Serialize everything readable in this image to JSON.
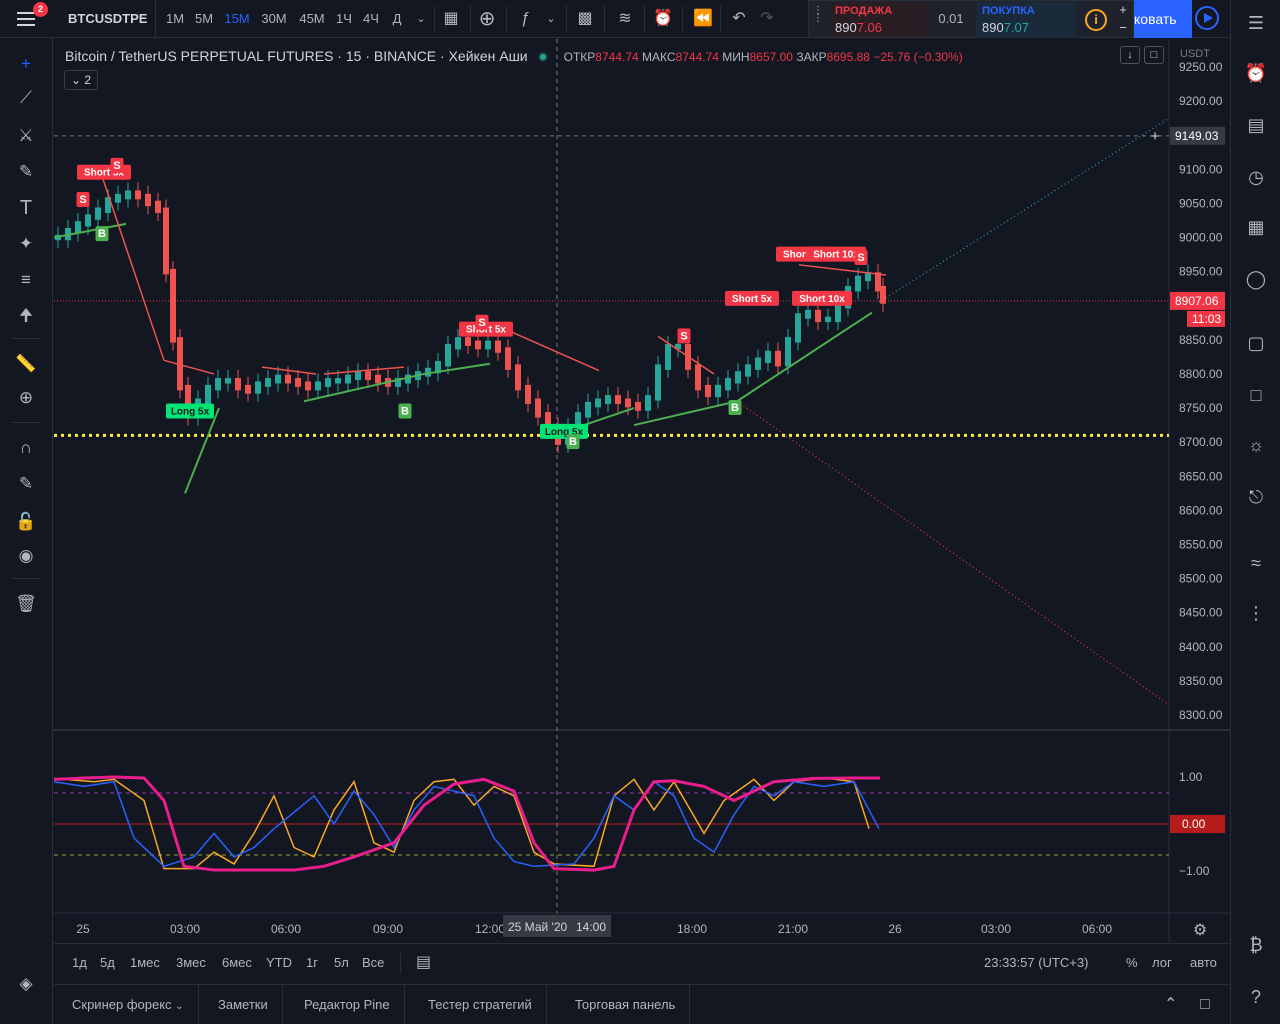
{
  "topbar": {
    "symbol": "BTCUSDTPE",
    "notification_count": "2",
    "timeframes": [
      "1M",
      "5M",
      "15M",
      "30M",
      "45M",
      "1Ч",
      "4Ч",
      "Д"
    ],
    "active_timeframe": "15M",
    "icons": [
      "candles-icon",
      "add-indicator-icon",
      "fx-icon",
      "bar-chart-icon",
      "template-icon",
      "alert-clock-icon",
      "replay-icon",
      "undo-icon",
      "redo-icon"
    ]
  },
  "trade_panel": {
    "sell_label": "ПРОДАЖА",
    "sell_price_prefix": "890",
    "sell_price_hi": "7.06",
    "spread": "0.01",
    "buy_label": "ПОКУПКА",
    "buy_price_prefix": "890",
    "buy_price_hi": "7.07",
    "trade_button": "ковать",
    "plus": "+",
    "minus": "−"
  },
  "legend": {
    "title": "Bitcoin / TetherUS PERPETUAL FUTURES",
    "interval": "15",
    "exchange": "BINANCE",
    "chart_style": "Хейкен Аши",
    "open_label": "ОТКР",
    "open": "8744.74",
    "high_label": "МАКС",
    "high": "8744.74",
    "low_label": "МИН",
    "low": "8657.00",
    "close_label": "ЗАКР",
    "close": "8695.88",
    "change": "−25.76 (−0.30%)",
    "indicators_count": "2"
  },
  "price_axis": {
    "currency": "USDT",
    "crosshair_price": "9149.03",
    "last_price": "8907.06",
    "countdown": "11:03"
  },
  "oscillator_axis": {
    "current_value": "0.00"
  },
  "time_axis": {
    "crosshair_label": "25 Май '20",
    "crosshair_time": "14:00"
  },
  "chart_data": {
    "type": "candlestick",
    "price_ticks": [
      9250,
      9200,
      9150,
      9100,
      9050,
      9000,
      8950,
      8900,
      8850,
      8800,
      8750,
      8700,
      8650,
      8600,
      8550,
      8500,
      8450,
      8400,
      8350,
      8300
    ],
    "price_tick_labels": [
      "9250.00",
      "9200.00",
      "9150.00",
      "9100.00",
      "9050.00",
      "9000.00",
      "8950.00",
      "8900.00",
      "8850.00",
      "8800.00",
      "8750.00",
      "8700.00",
      "8650.00",
      "8600.00",
      "8550.00",
      "8500.00",
      "8450.00",
      "8400.00",
      "8350.00",
      "8300.00"
    ],
    "osc_ticks": [
      1.0,
      0.0,
      -1.0
    ],
    "osc_tick_labels": [
      "1.00",
      "0.00",
      "−1.00"
    ],
    "time_labels": [
      "25",
      "03:00",
      "06:00",
      "09:00",
      "12:00",
      "18:00",
      "21:00",
      "26",
      "03:00",
      "06:00"
    ],
    "support_level": 8710,
    "last_price": 8907.06,
    "signals": [
      {
        "text": "S",
        "kind": "sell"
      },
      {
        "text": "Short 5x",
        "kind": "sell"
      },
      {
        "text": "B",
        "kind": "buy"
      },
      {
        "text": "Long 5x",
        "kind": "long"
      },
      {
        "text": "S",
        "kind": "sell"
      },
      {
        "text": "B",
        "kind": "buy"
      },
      {
        "text": "Short 5x",
        "kind": "sell"
      },
      {
        "text": "S",
        "kind": "sell"
      },
      {
        "text": "Long 5x",
        "kind": "long"
      },
      {
        "text": "B",
        "kind": "buy"
      },
      {
        "text": "S",
        "kind": "sell"
      },
      {
        "text": "B",
        "kind": "buy"
      },
      {
        "text": "Short 5x",
        "kind": "sell"
      },
      {
        "text": "Short 10x",
        "kind": "sell"
      },
      {
        "text": "Short 5x",
        "kind": "sell"
      },
      {
        "text": "Short 10x",
        "kind": "sell"
      },
      {
        "text": "S",
        "kind": "sell"
      }
    ]
  },
  "range_bar": {
    "ranges": [
      "1д",
      "5д",
      "1мес",
      "3мес",
      "6мес",
      "YTD",
      "1г",
      "5л",
      "Все"
    ],
    "clock": "23:33:57 (UTC+3)",
    "percent": "%",
    "log": "лог",
    "auto": "авто"
  },
  "bottom_tabs": [
    "Скринер форекс",
    "Заметки",
    "Редактор Pine",
    "Тестер стратегий",
    "Торговая панель"
  ]
}
